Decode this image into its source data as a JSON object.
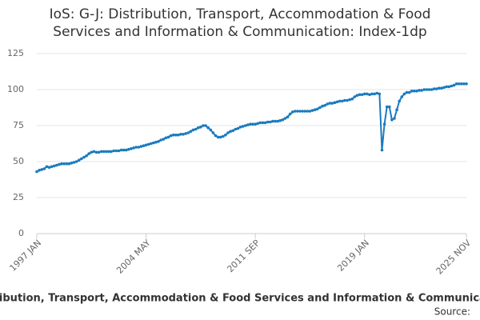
{
  "chart_data": {
    "type": "line",
    "title": [
      "IoS: G-J: Distribution, Transport, Accommodation & Food",
      "Services and Information & Communication: Index-1dp"
    ],
    "x_label": "Distribution, Transport, Accommodation & Food Services and Information & Communication",
    "source": "Source:",
    "categories": [
      "1997 JAN",
      null,
      null,
      null,
      null,
      null,
      null,
      null,
      null,
      null,
      null,
      null,
      null,
      null,
      null,
      null,
      null,
      null,
      null,
      null,
      null,
      null,
      null,
      null,
      null,
      null,
      null,
      null,
      null,
      null,
      null,
      null,
      null,
      null,
      null,
      null,
      null,
      null,
      null,
      null,
      null,
      null,
      null,
      null,
      "2004 MAY",
      null,
      null,
      null,
      null,
      null,
      null,
      null,
      null,
      null,
      null,
      null,
      null,
      null,
      null,
      null,
      null,
      null,
      null,
      null,
      null,
      null,
      null,
      null,
      null,
      null,
      null,
      null,
      null,
      null,
      null,
      null,
      null,
      null,
      null,
      null,
      null,
      null,
      null,
      null,
      null,
      null,
      null,
      null,
      "2011 SEP",
      null,
      null,
      null,
      null,
      null,
      null,
      null,
      null,
      null,
      null,
      null,
      null,
      null,
      null,
      null,
      null,
      null,
      null,
      null,
      null,
      null,
      null,
      null,
      null,
      null,
      null,
      null,
      null,
      null,
      null,
      null,
      null,
      null,
      null,
      null,
      null,
      null,
      null,
      null,
      null,
      null,
      null,
      null,
      "2019 JAN",
      null,
      null,
      null,
      null,
      null,
      null,
      null,
      null,
      null,
      null,
      null,
      null,
      null,
      null,
      null,
      null,
      null,
      null,
      null,
      null,
      null,
      null,
      null,
      null,
      null,
      null,
      null,
      null,
      null,
      null,
      null,
      null,
      null,
      null,
      null,
      null,
      null,
      null,
      null,
      null,
      "2025 NOV"
    ],
    "series": [
      {
        "name": "Index-1dp",
        "color": "#1a7bbf",
        "values": [
          43,
          44,
          44.5,
          45,
          46.5,
          46,
          46.5,
          47,
          47.5,
          48,
          48.5,
          48.5,
          48.5,
          48.5,
          49,
          49.5,
          50,
          51,
          52,
          53,
          54,
          55.5,
          56.5,
          57,
          56.5,
          56.5,
          57,
          57,
          57,
          57,
          57,
          57.5,
          57.5,
          57.5,
          58,
          58,
          58,
          58.5,
          59,
          59.5,
          60,
          60,
          60.5,
          61,
          61.5,
          62,
          62.5,
          63,
          63.5,
          64,
          65,
          65.5,
          66.5,
          67,
          68,
          68.5,
          68.5,
          68.5,
          69,
          69,
          69.5,
          70,
          71,
          72,
          72.5,
          73.5,
          74,
          75,
          75,
          73.5,
          72,
          70,
          68,
          67,
          67,
          67.5,
          68.5,
          70,
          71,
          71.5,
          72.5,
          73,
          74,
          74.5,
          75,
          75.5,
          76,
          76,
          76,
          76.5,
          77,
          77,
          77,
          77.5,
          77.5,
          78,
          78,
          78,
          78.5,
          79,
          80,
          81,
          83,
          84.5,
          85,
          85,
          85,
          85,
          85,
          85,
          85,
          85.5,
          86,
          86.5,
          87.5,
          88.5,
          89,
          90,
          90.5,
          90.5,
          91,
          91.5,
          92,
          92,
          92.5,
          92.5,
          93,
          93.5,
          95,
          96,
          96.5,
          96.5,
          97,
          97,
          96.5,
          97,
          97,
          97.5,
          97,
          58,
          76,
          88,
          88,
          79,
          80,
          86,
          92,
          95,
          97,
          98,
          98,
          99,
          99,
          99,
          99.5,
          99.5,
          100,
          100,
          100,
          100,
          100.5,
          100.5,
          101,
          101,
          101.5,
          102,
          102,
          102.5,
          103,
          104,
          104,
          104,
          104,
          104
        ]
      }
    ],
    "ylim": [
      0,
      125
    ],
    "yticks": [
      0,
      25,
      50,
      75,
      100,
      125
    ],
    "grid": true
  }
}
